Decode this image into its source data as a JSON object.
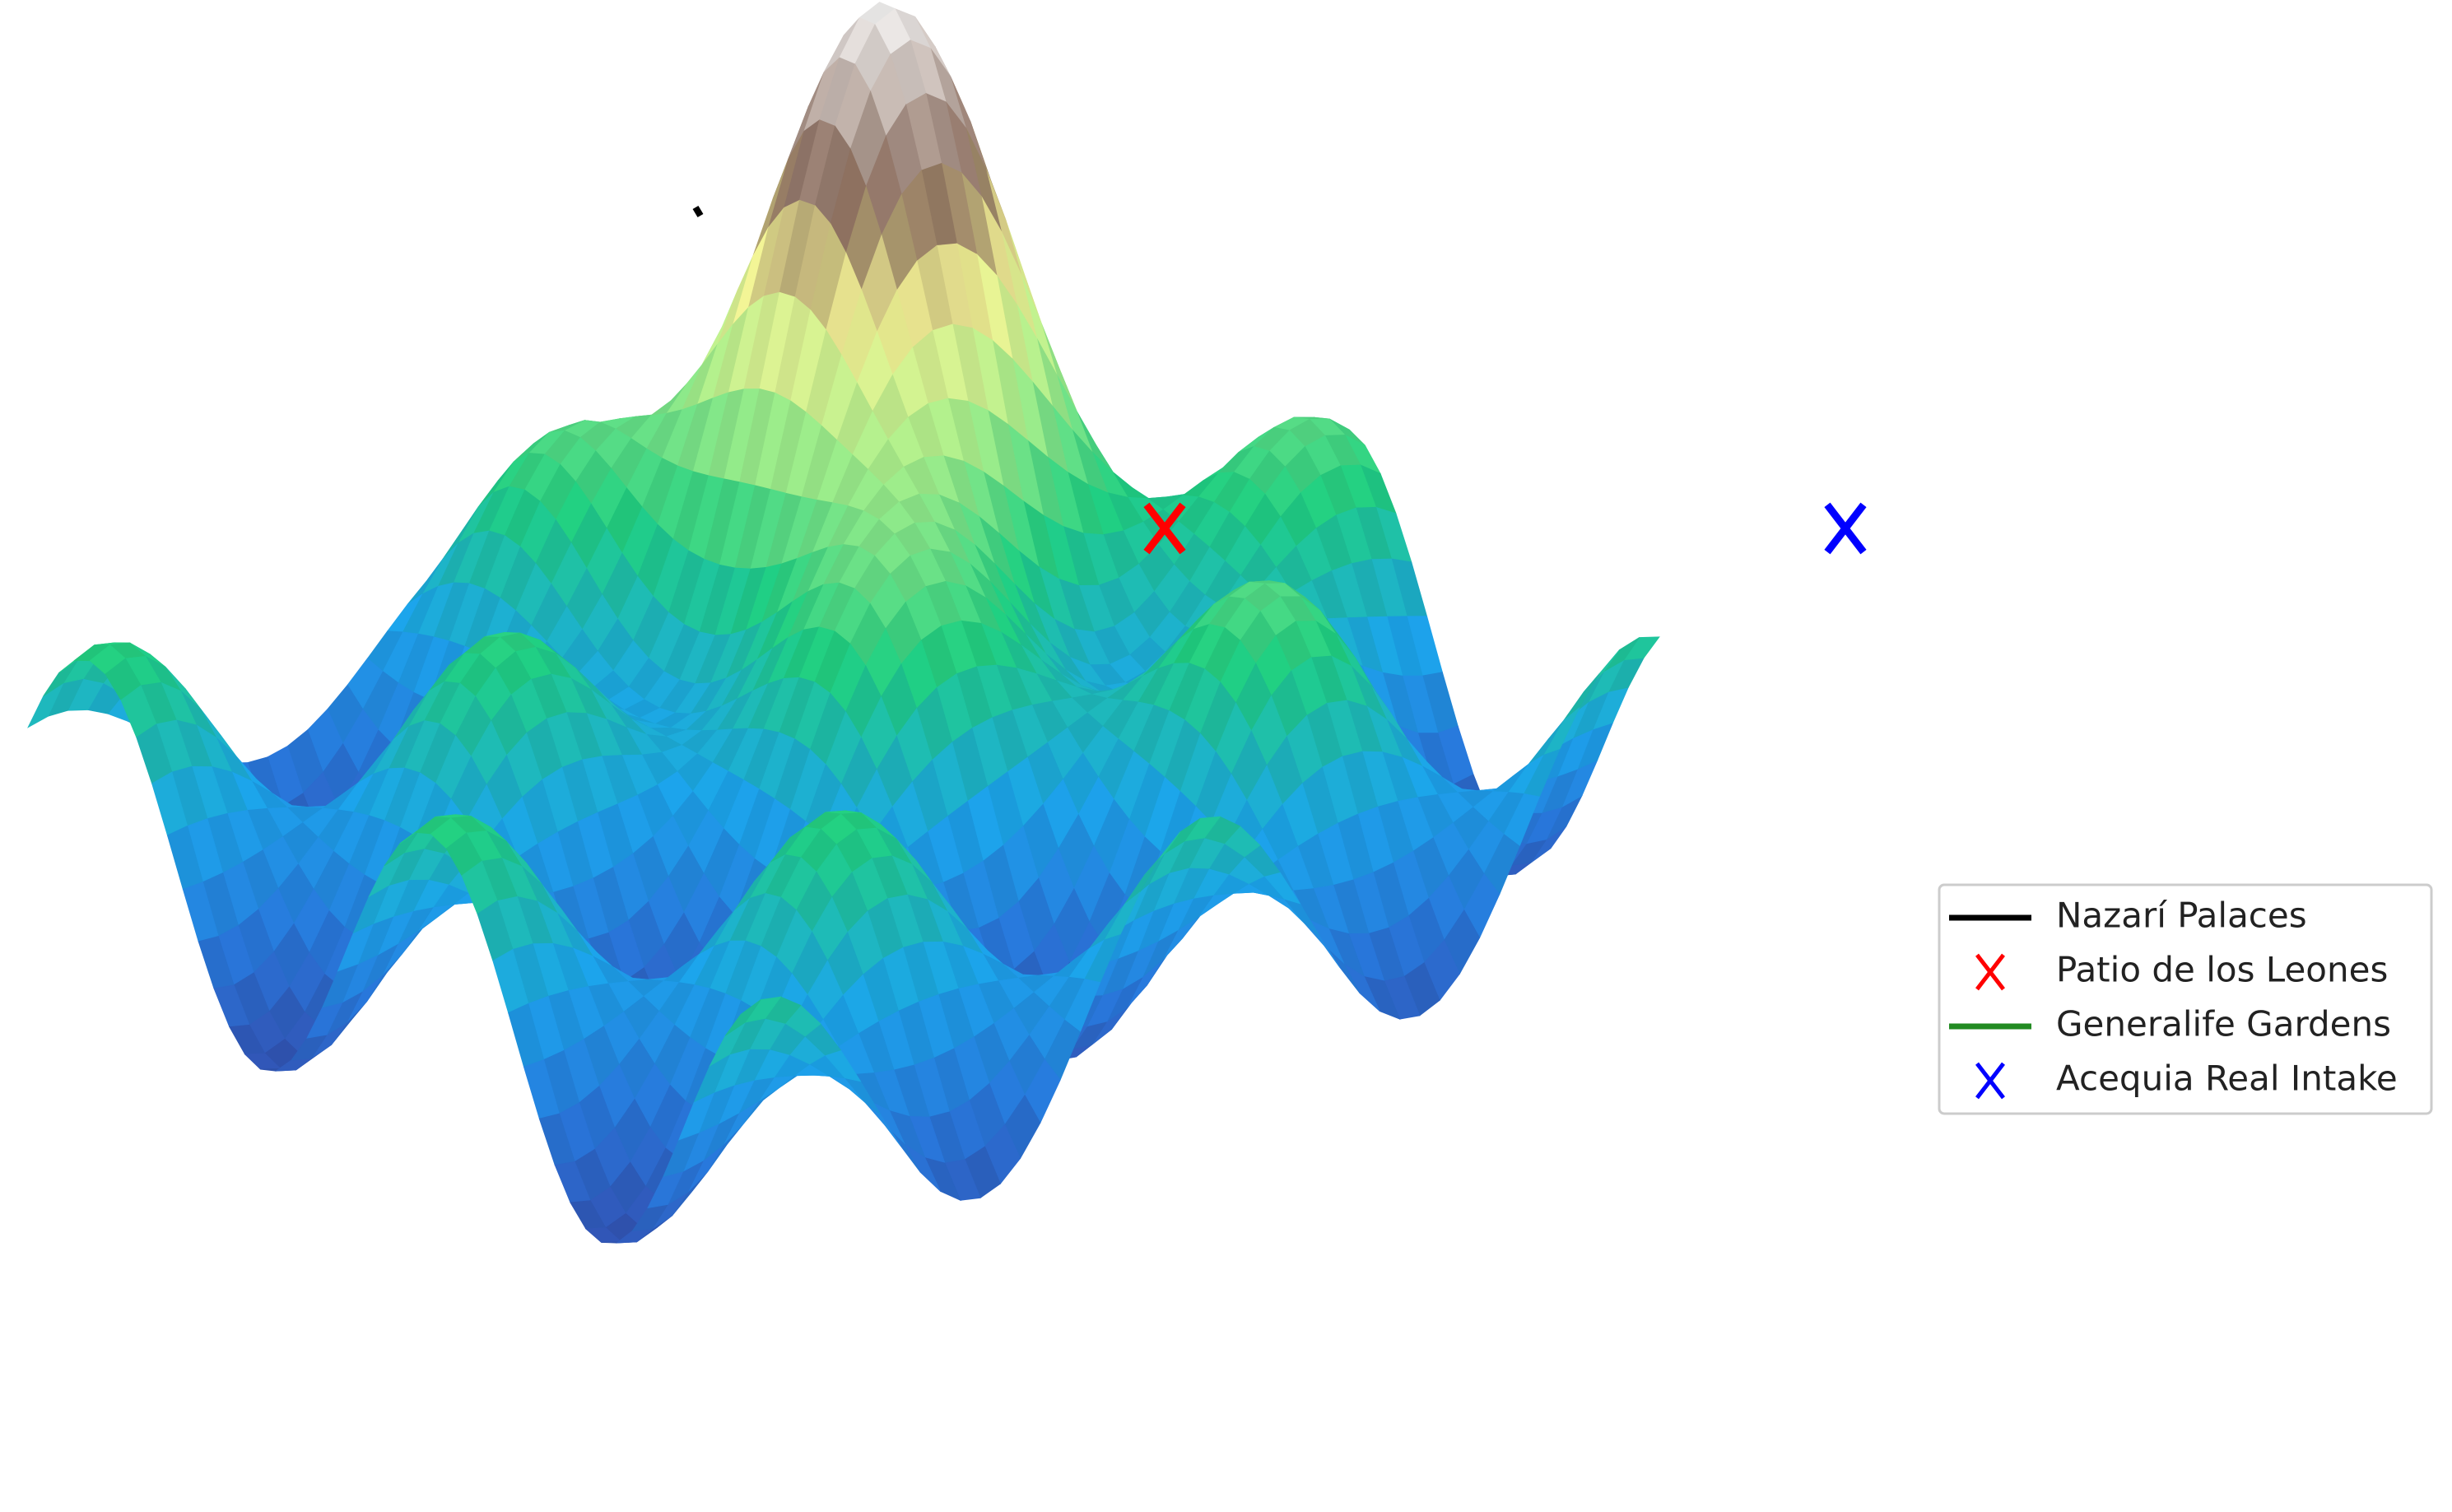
{
  "chart_data": {
    "type": "surface",
    "series": [
      {
        "name": "Nazarí Palaces",
        "color": "#000000",
        "marker": "line"
      },
      {
        "name": "Patio de los Leones",
        "color": "#ff0000",
        "marker": "x"
      },
      {
        "name": "Generalife Gardens",
        "color": "#228b22",
        "marker": "line"
      },
      {
        "name": "Acequia Real Intake",
        "color": "#0000ff",
        "marker": "x"
      }
    ],
    "legend": "right"
  }
}
